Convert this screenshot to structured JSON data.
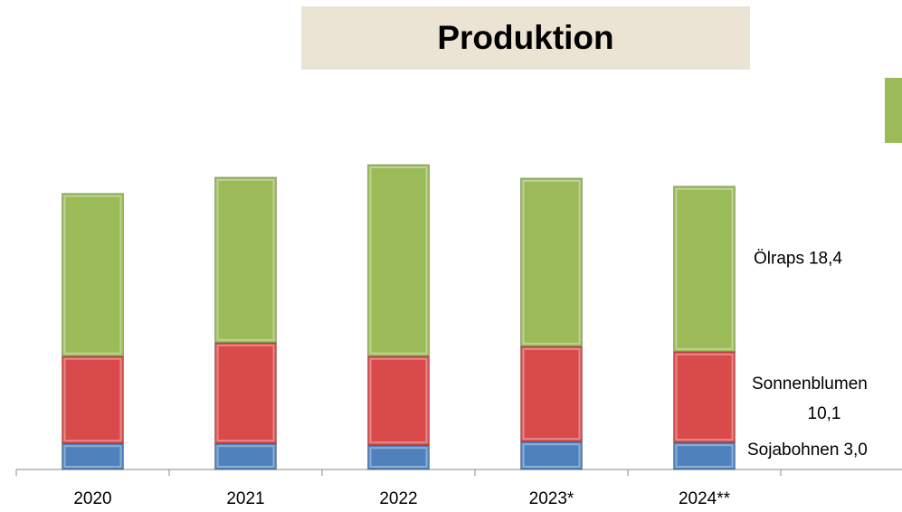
{
  "chart_data": {
    "type": "stacked-bar",
    "title": "Produktion",
    "categories": [
      "2020",
      "2021",
      "2022",
      "2023*",
      "2024**"
    ],
    "series": [
      {
        "name": "Sojabohnen",
        "color": "#4f81bd",
        "values": [
          2.9,
          2.9,
          2.7,
          3.1,
          3.0
        ],
        "value_labels": [
          null,
          null,
          null,
          null,
          "3,0"
        ]
      },
      {
        "name": "Sonnenblumen",
        "color": "#d94b4b",
        "values": [
          9.7,
          11.2,
          9.9,
          10.6,
          10.1
        ],
        "value_labels": [
          null,
          null,
          null,
          null,
          "10,1"
        ]
      },
      {
        "name": "Ölraps",
        "color": "#9bbb59",
        "values": [
          18.1,
          18.4,
          21.3,
          18.7,
          18.4
        ],
        "value_labels": [
          null,
          null,
          null,
          null,
          "18,4"
        ]
      }
    ]
  }
}
